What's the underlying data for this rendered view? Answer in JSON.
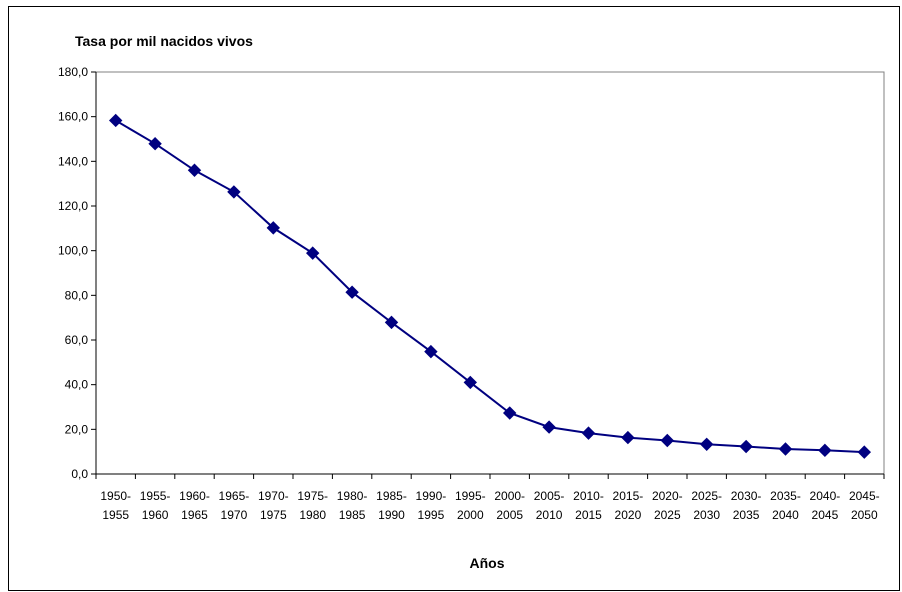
{
  "chart_data": {
    "type": "line",
    "ylabel": "Tasa por mil nacidos vivos",
    "xlabel": "Años",
    "categories": [
      [
        "1950-",
        "1955"
      ],
      [
        "1955-",
        "1960"
      ],
      [
        "1960-",
        "1965"
      ],
      [
        "1965-",
        "1970"
      ],
      [
        "1970-",
        "1975"
      ],
      [
        "1975-",
        "1980"
      ],
      [
        "1980-",
        "1985"
      ],
      [
        "1985-",
        "1990"
      ],
      [
        "1990-",
        "1995"
      ],
      [
        "1995-",
        "2000"
      ],
      [
        "2000-",
        "2005"
      ],
      [
        "2005-",
        "2010"
      ],
      [
        "2010-",
        "2015"
      ],
      [
        "2015-",
        "2020"
      ],
      [
        "2020-",
        "2025"
      ],
      [
        "2025-",
        "2030"
      ],
      [
        "2030-",
        "2035"
      ],
      [
        "2035-",
        "2040"
      ],
      [
        "2040-",
        "2045"
      ],
      [
        "2045-",
        "2050"
      ]
    ],
    "values": [
      158.3,
      147.9,
      136.0,
      126.3,
      110.2,
      98.9,
      81.4,
      67.9,
      54.8,
      41.0,
      27.3,
      21.0,
      18.3,
      16.3,
      15.0,
      13.3,
      12.3,
      11.2,
      10.6,
      9.8
    ],
    "ylim": [
      0,
      180
    ],
    "ytick_step": 20,
    "ytick_labels": [
      "0,0",
      "20,0",
      "40,0",
      "60,0",
      "80,0",
      "100,0",
      "120,0",
      "140,0",
      "160,0",
      "180,0"
    ],
    "grid": false,
    "legend": "none",
    "line_color": "#000080",
    "marker": "diamond"
  }
}
